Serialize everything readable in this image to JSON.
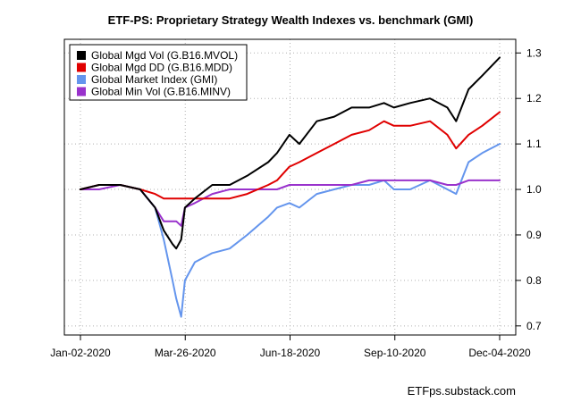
{
  "chart_data": {
    "type": "line",
    "title": "ETF-PS: Proprietary Strategy Wealth Indexes vs. benchmark (GMI)",
    "xlabel": "",
    "ylabel": "",
    "x_tick_labels": [
      "Jan-02-2020",
      "Mar-26-2020",
      "Jun-18-2020",
      "Sep-10-2020",
      "Dec-04-2020"
    ],
    "y_ticks": [
      0.7,
      0.8,
      0.9,
      1.0,
      1.1,
      1.2,
      1.3
    ],
    "ylim": [
      0.68,
      1.33
    ],
    "grid": true,
    "legend_position": "top-left",
    "x": [
      "2020-01-02",
      "2020-01-17",
      "2020-02-03",
      "2020-02-19",
      "2020-03-02",
      "2020-03-09",
      "2020-03-16",
      "2020-03-19",
      "2020-03-23",
      "2020-03-26",
      "2020-04-03",
      "2020-04-17",
      "2020-05-01",
      "2020-05-15",
      "2020-06-01",
      "2020-06-08",
      "2020-06-18",
      "2020-06-26",
      "2020-07-10",
      "2020-07-24",
      "2020-08-07",
      "2020-08-21",
      "2020-09-02",
      "2020-09-10",
      "2020-09-23",
      "2020-10-09",
      "2020-10-23",
      "2020-10-30",
      "2020-11-09",
      "2020-11-20",
      "2020-12-04"
    ],
    "series": [
      {
        "name": "Global Mgd Vol (G.B16.MVOL)",
        "color": "#000000",
        "values": [
          1.0,
          1.01,
          1.01,
          1.0,
          0.96,
          0.91,
          0.88,
          0.87,
          0.89,
          0.96,
          0.98,
          1.01,
          1.01,
          1.03,
          1.06,
          1.08,
          1.12,
          1.1,
          1.15,
          1.16,
          1.18,
          1.18,
          1.19,
          1.18,
          1.19,
          1.2,
          1.18,
          1.15,
          1.22,
          1.25,
          1.29
        ]
      },
      {
        "name": "Global Mgd DD (G.B16.MDD)",
        "color": "#e00000",
        "values": [
          1.0,
          1.01,
          1.01,
          1.0,
          0.99,
          0.98,
          0.98,
          0.98,
          0.98,
          0.98,
          0.98,
          0.98,
          0.98,
          0.99,
          1.01,
          1.02,
          1.05,
          1.06,
          1.08,
          1.1,
          1.12,
          1.13,
          1.15,
          1.14,
          1.14,
          1.15,
          1.12,
          1.09,
          1.12,
          1.14,
          1.17
        ]
      },
      {
        "name": "Global Market Index (GMI)",
        "color": "#6495ed",
        "values": [
          1.0,
          1.01,
          1.01,
          1.0,
          0.96,
          0.89,
          0.8,
          0.76,
          0.72,
          0.8,
          0.84,
          0.86,
          0.87,
          0.9,
          0.94,
          0.96,
          0.97,
          0.96,
          0.99,
          1.0,
          1.01,
          1.01,
          1.02,
          1.0,
          1.0,
          1.02,
          1.0,
          0.99,
          1.06,
          1.08,
          1.1
        ]
      },
      {
        "name": "Global Min Vol (G.B16.MINV)",
        "color": "#9932cc",
        "values": [
          1.0,
          1.0,
          1.01,
          1.0,
          0.96,
          0.93,
          0.93,
          0.93,
          0.92,
          0.96,
          0.97,
          0.99,
          1.0,
          1.0,
          1.0,
          1.0,
          1.01,
          1.01,
          1.01,
          1.01,
          1.01,
          1.02,
          1.02,
          1.02,
          1.02,
          1.02,
          1.01,
          1.01,
          1.02,
          1.02,
          1.02
        ]
      }
    ]
  },
  "credit": "ETFps.substack.com"
}
